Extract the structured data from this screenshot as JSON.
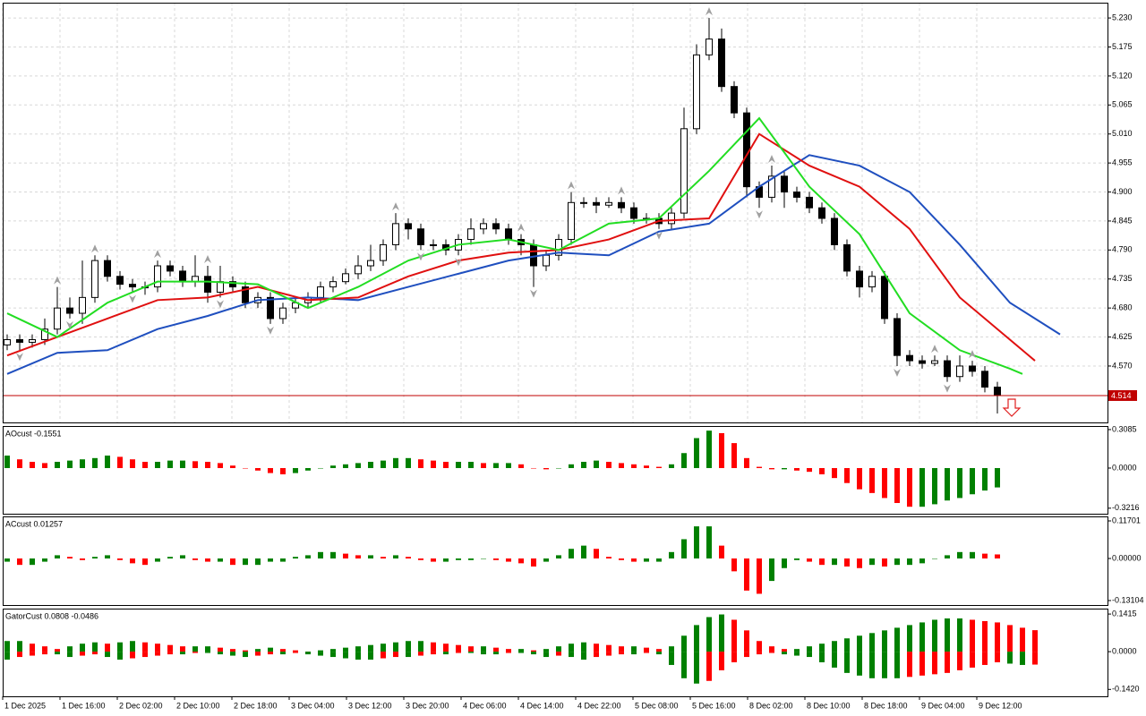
{
  "chart_data": [
    {
      "type": "candlestick",
      "xtick_labels": [
        "1 Dec 2025",
        "1 Dec 16:00",
        "2 Dec 02:00",
        "2 Dec 10:00",
        "2 Dec 18:00",
        "3 Dec 04:00",
        "3 Dec 12:00",
        "3 Dec 20:00",
        "4 Dec 06:00",
        "4 Dec 14:00",
        "4 Dec 22:00",
        "5 Dec 08:00",
        "5 Dec 16:00",
        "8 Dec 02:00",
        "8 Dec 10:00",
        "8 Dec 18:00",
        "9 Dec 04:00",
        "9 Dec 12:00"
      ],
      "open": [
        4.61,
        4.62,
        4.615,
        4.62,
        4.64,
        4.68,
        4.67,
        4.7,
        4.77,
        4.74,
        4.725,
        4.72,
        4.72,
        4.76,
        4.75,
        4.73,
        4.74,
        4.71,
        4.73,
        4.72,
        4.69,
        4.7,
        4.66,
        4.68,
        4.69,
        4.7,
        4.72,
        4.73,
        4.745,
        4.76,
        4.77,
        4.8,
        4.84,
        4.83,
        4.8,
        4.8,
        4.79,
        4.81,
        4.83,
        4.84,
        4.83,
        4.81,
        4.8,
        4.76,
        4.78,
        4.81,
        4.88,
        4.88,
        4.875,
        4.88,
        4.87,
        4.85,
        4.85,
        4.84,
        4.86,
        5.02,
        5.16,
        5.19,
        5.1,
        5.05,
        4.91,
        4.89,
        4.93,
        4.9,
        4.89,
        4.87,
        4.85,
        4.8,
        4.75,
        4.72,
        4.74,
        4.66,
        4.59,
        4.58,
        4.575,
        4.58,
        4.55,
        4.57,
        4.56,
        4.53
      ],
      "high": [
        4.63,
        4.63,
        4.63,
        4.66,
        4.72,
        4.7,
        4.77,
        4.78,
        4.78,
        4.75,
        4.735,
        4.73,
        4.77,
        4.77,
        4.76,
        4.78,
        4.76,
        4.76,
        4.74,
        4.73,
        4.71,
        4.71,
        4.69,
        4.7,
        4.71,
        4.73,
        4.74,
        4.755,
        4.78,
        4.8,
        4.81,
        4.86,
        4.85,
        4.84,
        4.81,
        4.81,
        4.82,
        4.85,
        4.85,
        4.85,
        4.84,
        4.82,
        4.81,
        4.79,
        4.82,
        4.9,
        4.89,
        4.89,
        4.89,
        4.89,
        4.88,
        4.86,
        4.86,
        4.87,
        5.06,
        5.18,
        5.23,
        5.21,
        5.11,
        5.06,
        4.92,
        4.95,
        4.94,
        4.91,
        4.9,
        4.88,
        4.86,
        4.81,
        4.76,
        4.75,
        4.75,
        4.67,
        4.6,
        4.59,
        4.59,
        4.59,
        4.59,
        4.58,
        4.57,
        4.54
      ],
      "low": [
        4.6,
        4.6,
        4.605,
        4.61,
        4.63,
        4.66,
        4.65,
        4.69,
        4.73,
        4.715,
        4.71,
        4.705,
        4.71,
        4.74,
        4.72,
        4.72,
        4.69,
        4.7,
        4.71,
        4.68,
        4.68,
        4.65,
        4.65,
        4.67,
        4.68,
        4.69,
        4.71,
        4.725,
        4.735,
        4.75,
        4.76,
        4.79,
        4.81,
        4.79,
        4.79,
        4.78,
        4.78,
        4.8,
        4.82,
        4.82,
        4.8,
        4.78,
        4.72,
        4.75,
        4.77,
        4.8,
        4.87,
        4.86,
        4.87,
        4.86,
        4.84,
        4.84,
        4.83,
        4.83,
        4.85,
        5.01,
        5.15,
        5.09,
        5.04,
        4.89,
        4.87,
        4.88,
        4.87,
        4.88,
        4.86,
        4.84,
        4.79,
        4.74,
        4.7,
        4.71,
        4.65,
        4.57,
        4.57,
        4.565,
        4.57,
        4.54,
        4.54,
        4.55,
        4.52,
        4.48
      ],
      "close": [
        4.62,
        4.615,
        4.62,
        4.64,
        4.68,
        4.67,
        4.7,
        4.77,
        4.74,
        4.725,
        4.72,
        4.72,
        4.76,
        4.75,
        4.73,
        4.74,
        4.71,
        4.73,
        4.72,
        4.69,
        4.7,
        4.66,
        4.68,
        4.69,
        4.7,
        4.72,
        4.73,
        4.745,
        4.76,
        4.77,
        4.8,
        4.84,
        4.83,
        4.8,
        4.8,
        4.79,
        4.81,
        4.83,
        4.84,
        4.83,
        4.81,
        4.8,
        4.76,
        4.78,
        4.81,
        4.88,
        4.88,
        4.875,
        4.88,
        4.87,
        4.85,
        4.85,
        4.84,
        4.86,
        5.02,
        5.16,
        5.19,
        5.1,
        5.05,
        4.91,
        4.89,
        4.93,
        4.9,
        4.89,
        4.87,
        4.85,
        4.8,
        4.75,
        4.72,
        4.74,
        4.66,
        4.59,
        4.58,
        4.575,
        4.58,
        4.55,
        4.57,
        4.56,
        4.53,
        4.514
      ],
      "up_color": "#ffffff",
      "down_color": "#000000",
      "lines": [
        {
          "color": "#1f4fbf",
          "x": [
            0,
            4,
            8,
            12,
            16,
            20,
            24,
            28,
            32,
            36,
            40,
            44,
            48,
            52,
            56,
            60,
            64,
            68,
            72,
            76,
            80,
            84
          ],
          "values": [
            4.555,
            4.595,
            4.6,
            4.64,
            4.665,
            4.695,
            4.7,
            4.695,
            4.72,
            4.745,
            4.77,
            4.785,
            4.78,
            4.825,
            4.84,
            4.91,
            4.97,
            4.95,
            4.9,
            4.8,
            4.69,
            4.63
          ]
        },
        {
          "color": "#e01010",
          "x": [
            0,
            4,
            8,
            12,
            16,
            20,
            24,
            28,
            32,
            36,
            40,
            44,
            48,
            52,
            56,
            60,
            64,
            68,
            72,
            76,
            80,
            82
          ],
          "values": [
            4.59,
            4.625,
            4.66,
            4.695,
            4.7,
            4.72,
            4.695,
            4.7,
            4.74,
            4.77,
            4.785,
            4.79,
            4.81,
            4.845,
            4.85,
            5.01,
            4.95,
            4.91,
            4.83,
            4.7,
            4.62,
            4.58
          ]
        },
        {
          "color": "#22dd22",
          "x": [
            0,
            4,
            8,
            12,
            16,
            20,
            24,
            28,
            32,
            36,
            40,
            44,
            48,
            52,
            56,
            60,
            64,
            68,
            72,
            76,
            80,
            81
          ],
          "values": [
            4.67,
            4.625,
            4.69,
            4.73,
            4.73,
            4.725,
            4.68,
            4.72,
            4.77,
            4.8,
            4.81,
            4.79,
            4.84,
            4.85,
            4.94,
            5.04,
            4.91,
            4.82,
            4.67,
            4.6,
            4.565,
            4.555
          ]
        }
      ],
      "fractals_up": [
        4,
        7,
        12,
        16,
        31,
        41,
        45,
        49,
        56,
        61,
        74,
        77
      ],
      "fractals_down": [
        1,
        5,
        10,
        17,
        21,
        33,
        36,
        42,
        52,
        60,
        71,
        75
      ],
      "fractal_color": "#a0a0a0",
      "current_price": 4.514,
      "current_price_color": "#c00000",
      "ylim": [
        4.463,
        5.259
      ],
      "yticks": [
        {
          "value": 5.23,
          "label": "5.230"
        },
        5.175,
        {
          "value": 5.12,
          "label": "5.120"
        },
        5.065,
        {
          "value": 5.01,
          "label": "5.010"
        },
        4.955,
        {
          "value": 4.9,
          "label": "4.900"
        },
        4.845,
        {
          "value": 4.79,
          "label": "4.790"
        },
        4.735,
        {
          "value": 4.68,
          "label": "4.680"
        },
        4.625,
        {
          "value": 4.57,
          "label": "4.570"
        }
      ],
      "grid": true
    },
    {
      "type": "bar",
      "title": "AOcust -0.1551",
      "values": [
        0.1,
        0.07,
        0.05,
        0.04,
        0.05,
        0.06,
        0.07,
        0.08,
        0.1,
        0.09,
        0.07,
        0.05,
        0.05,
        0.06,
        0.06,
        0.055,
        0.05,
        0.04,
        0.02,
        0.0,
        -0.02,
        -0.04,
        -0.05,
        -0.04,
        -0.02,
        0.0,
        0.02,
        0.03,
        0.04,
        0.05,
        0.06,
        0.08,
        0.08,
        0.07,
        0.06,
        0.05,
        0.05,
        0.05,
        0.04,
        0.04,
        0.04,
        0.03,
        0.0,
        -0.01,
        0.0,
        0.03,
        0.05,
        0.06,
        0.05,
        0.04,
        0.03,
        0.02,
        0.01,
        0.03,
        0.12,
        0.24,
        0.3,
        0.28,
        0.2,
        0.08,
        0.01,
        -0.01,
        -0.01,
        -0.02,
        -0.03,
        -0.05,
        -0.08,
        -0.12,
        -0.17,
        -0.2,
        -0.24,
        -0.28,
        -0.31,
        -0.31,
        -0.29,
        -0.26,
        -0.24,
        -0.21,
        -0.18,
        -0.1551
      ],
      "up_color": "#008000",
      "down_color": "#ff0000",
      "ylim": [
        -0.366,
        0.337
      ],
      "yticks": [
        0.3085,
        {
          "value": 0,
          "label": "0.0000"
        },
        -0.3216
      ]
    },
    {
      "type": "bar",
      "title": "ACcust 0.01257",
      "values": [
        -0.01,
        -0.02,
        -0.02,
        -0.01,
        0.01,
        0.005,
        -0.005,
        0.005,
        0.01,
        -0.005,
        -0.015,
        -0.02,
        -0.01,
        0.005,
        0.01,
        -0.005,
        -0.01,
        -0.01,
        -0.02,
        -0.02,
        -0.02,
        -0.01,
        -0.01,
        0.005,
        0.01,
        0.02,
        0.02,
        0.015,
        0.01,
        0.01,
        0.005,
        0.01,
        0.005,
        -0.005,
        -0.01,
        -0.01,
        -0.005,
        -0.005,
        0.0,
        -0.005,
        -0.01,
        -0.015,
        -0.025,
        -0.01,
        0.01,
        0.03,
        0.04,
        0.03,
        0.005,
        -0.005,
        -0.01,
        -0.01,
        -0.01,
        0.02,
        0.06,
        0.1,
        0.1,
        0.04,
        -0.04,
        -0.1,
        -0.11,
        -0.07,
        -0.03,
        -0.005,
        -0.01,
        -0.02,
        -0.02,
        -0.025,
        -0.03,
        -0.02,
        -0.025,
        -0.02,
        -0.02,
        -0.015,
        0.0,
        0.01,
        0.02,
        0.02,
        0.015,
        0.01257
      ],
      "up_color": "#008000",
      "down_color": "#ff0000",
      "ylim": [
        -0.145,
        0.131
      ],
      "yticks": [
        0.11701,
        {
          "value": 0,
          "label": "0.00000"
        },
        -0.13104
      ]
    },
    {
      "type": "bar",
      "title": "GatorCust 0.0808 -0.0486",
      "series": [
        {
          "values": [
            0.04,
            0.04,
            0.03,
            0.02,
            0.01,
            0.02,
            0.03,
            0.035,
            0.03,
            0.035,
            0.04,
            0.035,
            0.03,
            0.025,
            0.02,
            0.02,
            0.02,
            0.015,
            0.01,
            0.005,
            0.01,
            0.015,
            0.01,
            0.005,
            0.0,
            0.005,
            0.01,
            0.015,
            0.02,
            0.025,
            0.03,
            0.035,
            0.04,
            0.04,
            0.035,
            0.03,
            0.025,
            0.02,
            0.02,
            0.015,
            0.01,
            0.01,
            0.005,
            0.01,
            0.02,
            0.03,
            0.035,
            0.03,
            0.025,
            0.02,
            0.02,
            0.015,
            0.01,
            0.02,
            0.06,
            0.1,
            0.13,
            0.14,
            0.12,
            0.08,
            0.04,
            0.02,
            0.01,
            0.01,
            0.02,
            0.03,
            0.04,
            0.05,
            0.06,
            0.07,
            0.08,
            0.09,
            0.1,
            0.11,
            0.12,
            0.125,
            0.125,
            0.12,
            0.115,
            0.11,
            0.1,
            0.09,
            0.0808
          ]
        },
        {
          "values": [
            -0.03,
            -0.02,
            -0.015,
            -0.01,
            -0.01,
            -0.02,
            -0.015,
            -0.01,
            -0.02,
            -0.03,
            -0.025,
            -0.02,
            -0.015,
            -0.01,
            -0.01,
            -0.005,
            -0.005,
            -0.01,
            -0.015,
            -0.02,
            -0.015,
            -0.01,
            -0.01,
            -0.005,
            -0.01,
            -0.015,
            -0.02,
            -0.025,
            -0.03,
            -0.03,
            -0.025,
            -0.02,
            -0.02,
            -0.015,
            -0.01,
            -0.01,
            -0.005,
            -0.005,
            -0.01,
            -0.01,
            -0.005,
            -0.005,
            -0.01,
            -0.02,
            -0.015,
            -0.02,
            -0.03,
            -0.02,
            -0.015,
            -0.01,
            -0.01,
            -0.005,
            -0.01,
            -0.05,
            -0.1,
            -0.12,
            -0.11,
            -0.07,
            -0.04,
            -0.02,
            -0.01,
            -0.005,
            -0.01,
            -0.015,
            -0.02,
            -0.04,
            -0.06,
            -0.08,
            -0.09,
            -0.1,
            -0.1,
            -0.1,
            -0.095,
            -0.09,
            -0.085,
            -0.08,
            -0.07,
            -0.06,
            -0.05,
            -0.04,
            -0.045,
            -0.05,
            -0.0486
          ]
        }
      ],
      "up_color": "#008000",
      "down_color": "#ff0000",
      "ylim": [
        -0.168,
        0.162
      ],
      "yticks": [
        0.1415,
        {
          "value": 0,
          "label": "0.0000"
        },
        {
          "value": -0.142,
          "label": "-0.1420"
        }
      ]
    }
  ]
}
